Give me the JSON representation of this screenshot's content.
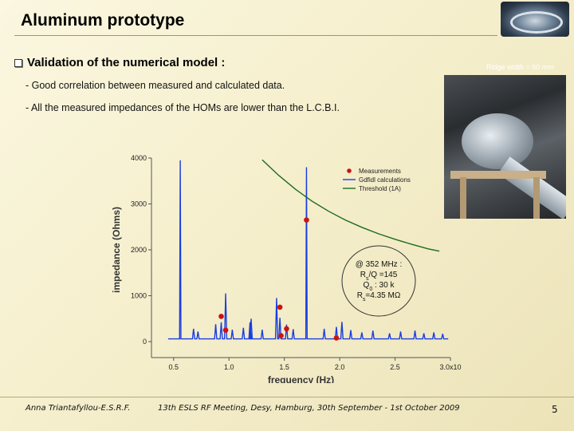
{
  "slide": {
    "title": "Aluminum prototype",
    "bullet": "Validation of the numerical model :",
    "sub1": "- Good correlation between measured and calculated data.",
    "sub2": "- All the measured impedances of the HOMs are lower than the L.C.B.I.",
    "ridge_label": "Ridge width = 60 mm",
    "footer_left": "Anna Triantafyllou-E.S.R.F.",
    "footer_center": "13th ESLS RF Meeting, Desy, Hamburg, 30th  September - 1st October 2009",
    "footer_right": "5"
  },
  "chart_data": {
    "type": "line",
    "xlabel": "frequency (Hz)",
    "ylabel": "impedance (Ohms)",
    "xlim": [
      0.3,
      3.0
    ],
    "ylim": [
      0,
      4000
    ],
    "x_ticks": [
      "0.5",
      "1.0",
      "1.5",
      "2.0",
      "2.5",
      "3.0x10"
    ],
    "x_tick_values": [
      0.5,
      1.0,
      1.5,
      2.0,
      2.5,
      3.0
    ],
    "x_exponent": "9",
    "y_ticks": [
      0,
      1000,
      2000,
      3000,
      4000
    ],
    "legend": [
      "Measurements",
      "Gdfidl calculations",
      "Threshold (1A)"
    ],
    "legend_position": "top-right",
    "colors": {
      "measurements": "#cc1111",
      "calc": "#1a3ee0",
      "threshold": "#1e6b1e"
    },
    "series": [
      {
        "name": "Measurements",
        "kind": "scatter",
        "points": [
          [
            0.93,
            550
          ],
          [
            0.97,
            250
          ],
          [
            1.46,
            750
          ],
          [
            1.47,
            130
          ],
          [
            1.52,
            280
          ],
          [
            1.7,
            2650
          ],
          [
            1.97,
            80
          ]
        ]
      },
      {
        "name": "Gdfidl calculations",
        "kind": "peaks",
        "baseline": 60,
        "peaks": [
          [
            0.56,
            3950
          ],
          [
            0.68,
            280
          ],
          [
            0.72,
            220
          ],
          [
            0.88,
            380
          ],
          [
            0.93,
            420
          ],
          [
            0.97,
            1050
          ],
          [
            1.03,
            260
          ],
          [
            1.13,
            300
          ],
          [
            1.19,
            420
          ],
          [
            1.2,
            500
          ],
          [
            1.3,
            260
          ],
          [
            1.43,
            950
          ],
          [
            1.46,
            520
          ],
          [
            1.52,
            370
          ],
          [
            1.58,
            270
          ],
          [
            1.7,
            3800
          ],
          [
            1.86,
            280
          ],
          [
            1.97,
            320
          ],
          [
            2.02,
            430
          ],
          [
            2.1,
            250
          ],
          [
            2.2,
            200
          ],
          [
            2.3,
            240
          ],
          [
            2.45,
            180
          ],
          [
            2.55,
            220
          ],
          [
            2.68,
            240
          ],
          [
            2.76,
            180
          ],
          [
            2.85,
            200
          ],
          [
            2.93,
            170
          ]
        ]
      },
      {
        "name": "Threshold (1A)",
        "kind": "line",
        "points": [
          [
            1.3,
            3960
          ],
          [
            1.45,
            3620
          ],
          [
            1.6,
            3320
          ],
          [
            1.75,
            3060
          ],
          [
            1.9,
            2840
          ],
          [
            2.05,
            2650
          ],
          [
            2.2,
            2490
          ],
          [
            2.35,
            2350
          ],
          [
            2.5,
            2230
          ],
          [
            2.65,
            2120
          ],
          [
            2.8,
            2020
          ],
          [
            2.9,
            1970
          ]
        ]
      }
    ],
    "annotation": {
      "lines": [
        "@ 352 MHz :",
        "R",
        "s",
        "/Q =145",
        "Q",
        "0",
        " : 30 k",
        "R",
        "s",
        "=4.35 MΩ"
      ]
    }
  }
}
